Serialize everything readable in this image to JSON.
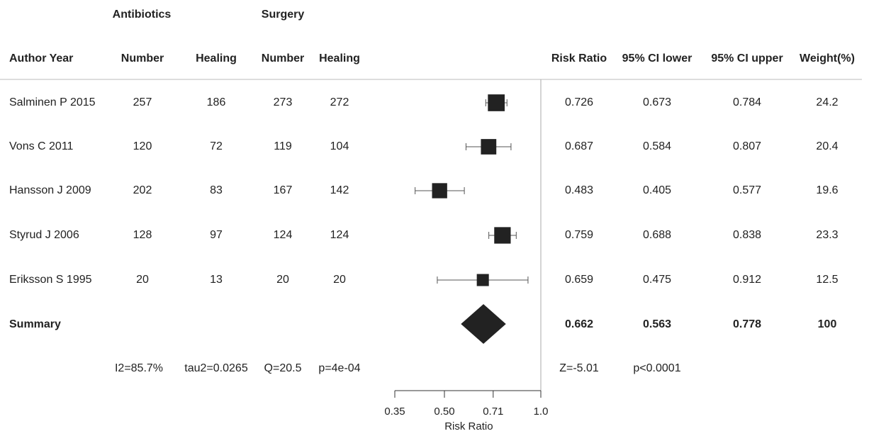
{
  "group_headers": {
    "antibiotics": "Antibiotics",
    "surgery": "Surgery"
  },
  "columns": {
    "author": "Author Year",
    "abx_number": "Number",
    "abx_healing": "Healing",
    "surg_number": "Number",
    "surg_healing": "Healing",
    "rr": "Risk Ratio",
    "ci_lower": "95% CI lower",
    "ci_upper": "95% CI upper",
    "weight": "Weight(%)"
  },
  "rows": [
    {
      "study": "Salminen P 2015",
      "abx_n": "257",
      "abx_heal": "186",
      "surg_n": "273",
      "surg_heal": "272",
      "rr": "0.726",
      "lower": "0.673",
      "upper": "0.784",
      "weight": "24.2"
    },
    {
      "study": "Vons C 2011",
      "abx_n": "120",
      "abx_heal": "72",
      "surg_n": "119",
      "surg_heal": "104",
      "rr": "0.687",
      "lower": "0.584",
      "upper": "0.807",
      "weight": "20.4"
    },
    {
      "study": "Hansson J 2009",
      "abx_n": "202",
      "abx_heal": "83",
      "surg_n": "167",
      "surg_heal": "142",
      "rr": "0.483",
      "lower": "0.405",
      "upper": "0.577",
      "weight": "19.6"
    },
    {
      "study": "Styrud J 2006",
      "abx_n": "128",
      "abx_heal": "97",
      "surg_n": "124",
      "surg_heal": "124",
      "rr": "0.759",
      "lower": "0.688",
      "upper": "0.838",
      "weight": "23.3"
    },
    {
      "study": "Eriksson S 1995",
      "abx_n": "20",
      "abx_heal": "13",
      "surg_n": "20",
      "surg_heal": "20",
      "rr": "0.659",
      "lower": "0.475",
      "upper": "0.912",
      "weight": "12.5"
    }
  ],
  "summary": {
    "label": "Summary",
    "rr": "0.662",
    "lower": "0.563",
    "upper": "0.778",
    "weight": "100"
  },
  "stats": {
    "i2": "I2=85.7%",
    "tau2": "tau2=0.0265",
    "q": "Q=20.5",
    "p_het": "p=4e-04",
    "z": "Z=-5.01",
    "p_overall": "p<0.0001"
  },
  "chart_data": {
    "type": "forest",
    "x_scale": "log",
    "xlim": [
      0.35,
      1.0
    ],
    "xticks": [
      0.35,
      0.5,
      0.71,
      1.0
    ],
    "xtick_labels": [
      "0.35",
      "0.50",
      "0.71",
      "1.0"
    ],
    "xlabel": "Risk Ratio",
    "reference_line": 1.0,
    "studies": [
      {
        "name": "Salminen P 2015",
        "rr": 0.726,
        "lower": 0.673,
        "upper": 0.784,
        "weight": 24.2
      },
      {
        "name": "Vons C 2011",
        "rr": 0.687,
        "lower": 0.584,
        "upper": 0.807,
        "weight": 20.4
      },
      {
        "name": "Hansson J 2009",
        "rr": 0.483,
        "lower": 0.405,
        "upper": 0.577,
        "weight": 19.6
      },
      {
        "name": "Styrud J 2006",
        "rr": 0.759,
        "lower": 0.688,
        "upper": 0.838,
        "weight": 23.3
      },
      {
        "name": "Eriksson S 1995",
        "rr": 0.659,
        "lower": 0.475,
        "upper": 0.912,
        "weight": 12.5
      }
    ],
    "summary": {
      "rr": 0.662,
      "lower": 0.563,
      "upper": 0.778
    },
    "colors": {
      "marker": "#222222",
      "line": "#555555",
      "axis": "#333333"
    }
  }
}
